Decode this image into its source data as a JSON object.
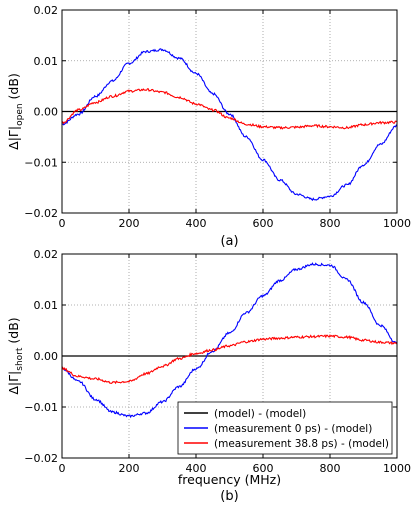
{
  "chart_data": [
    {
      "type": "line",
      "ylabel_parts": [
        "Δ|Γ|",
        "open",
        " (dB)"
      ],
      "caption": "(a)",
      "xlim": [
        0,
        1000
      ],
      "ylim": [
        -0.02,
        0.02
      ],
      "xticks": [
        0,
        200,
        400,
        600,
        800,
        1000
      ],
      "yticks": [
        -0.02,
        -0.01,
        0.0,
        0.01,
        0.02
      ],
      "ytick_labels": [
        "−0.02",
        "−0.01",
        "0.00",
        "0.01",
        "0.02"
      ],
      "grid": true,
      "x": [
        0,
        50,
        100,
        150,
        200,
        250,
        300,
        350,
        400,
        450,
        500,
        550,
        600,
        650,
        700,
        750,
        800,
        850,
        900,
        950,
        1000
      ],
      "series": [
        {
          "color": "#000000",
          "values": [
            0,
            0,
            0,
            0,
            0,
            0,
            0,
            0,
            0,
            0,
            0,
            0,
            0,
            0,
            0,
            0,
            0,
            0,
            0,
            0,
            0
          ]
        },
        {
          "color": "#0000ff",
          "values": [
            -0.0025,
            -0.0005,
            0.003,
            0.006,
            0.0095,
            0.0118,
            0.0122,
            0.0105,
            0.0075,
            0.0035,
            -0.0005,
            -0.005,
            -0.0095,
            -0.0135,
            -0.0163,
            -0.0173,
            -0.0167,
            -0.0145,
            -0.0105,
            -0.0065,
            -0.0028
          ]
        },
        {
          "color": "#ff0000",
          "values": [
            -0.0022,
            0.0003,
            0.0018,
            0.003,
            0.004,
            0.0043,
            0.0038,
            0.0028,
            0.0015,
            0.0003,
            -0.0013,
            -0.0025,
            -0.003,
            -0.0032,
            -0.0031,
            -0.0028,
            -0.003,
            -0.0032,
            -0.0026,
            -0.0022,
            -0.0021
          ]
        }
      ]
    },
    {
      "type": "line",
      "ylabel_parts": [
        "Δ|Γ|",
        "short",
        " (dB)"
      ],
      "xlabel": "frequency (MHz)",
      "caption": "(b)",
      "xlim": [
        0,
        1000
      ],
      "ylim": [
        -0.02,
        0.02
      ],
      "xticks": [
        0,
        200,
        400,
        600,
        800,
        1000
      ],
      "yticks": [
        -0.02,
        -0.01,
        0.0,
        0.01,
        0.02
      ],
      "ytick_labels": [
        "−0.02",
        "−0.01",
        "0.00",
        "0.01",
        "0.02"
      ],
      "grid": true,
      "legend_position": "lower-right",
      "x": [
        0,
        50,
        100,
        150,
        200,
        250,
        300,
        350,
        400,
        450,
        500,
        550,
        600,
        650,
        700,
        750,
        800,
        850,
        900,
        950,
        1000
      ],
      "series": [
        {
          "name": "(model) - (model)",
          "color": "#000000",
          "values": [
            0,
            0,
            0,
            0,
            0,
            0,
            0,
            0,
            0,
            0,
            0,
            0,
            0,
            0,
            0,
            0,
            0,
            0,
            0,
            0,
            0
          ]
        },
        {
          "name": "(measurement 0 ps) - (model)",
          "color": "#0000ff",
          "values": [
            -0.0025,
            -0.005,
            -0.0085,
            -0.011,
            -0.0118,
            -0.0112,
            -0.009,
            -0.006,
            -0.0025,
            0.001,
            0.0045,
            0.0085,
            0.0118,
            0.0148,
            0.017,
            0.018,
            0.0178,
            0.015,
            0.0105,
            0.006,
            0.0025
          ]
        },
        {
          "name": "(measurement 38.8 ps) - (model)",
          "color": "#ff0000",
          "values": [
            -0.0025,
            -0.004,
            -0.0045,
            -0.0052,
            -0.005,
            -0.0035,
            -0.002,
            -0.0005,
            0.0005,
            0.0012,
            0.002,
            0.0028,
            0.0033,
            0.0035,
            0.0037,
            0.0038,
            0.0039,
            0.0037,
            0.0031,
            0.0027,
            0.0025
          ]
        }
      ]
    }
  ]
}
